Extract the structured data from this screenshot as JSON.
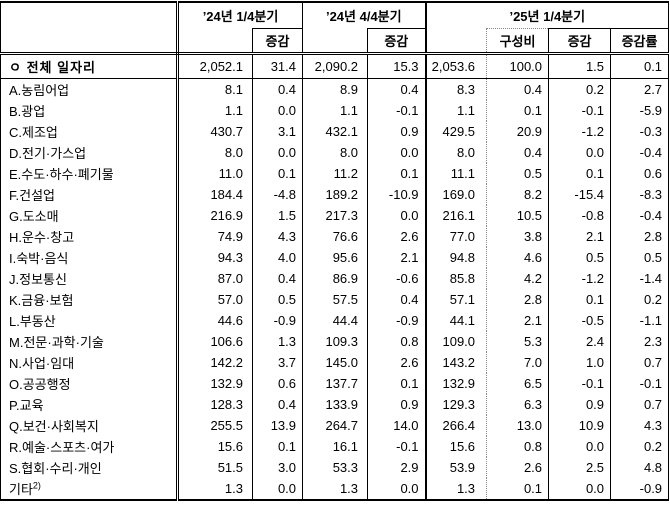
{
  "table": {
    "header": {
      "groups": [
        {
          "label": "’24년 1/4분기",
          "subs": [
            "",
            "증감"
          ]
        },
        {
          "label": "’24년 4/4분기",
          "subs": [
            "",
            "증감"
          ]
        },
        {
          "label": "’25년 1/4분기",
          "subs": [
            "",
            "구성비",
            "증감",
            "증감률"
          ]
        }
      ]
    },
    "total_row": {
      "label": "ㅇ 전체 일자리",
      "values": [
        "2,052.1",
        "31.4",
        "2,090.2",
        "15.3",
        "2,053.6",
        "100.0",
        "1.5",
        "0.1"
      ]
    },
    "rows": [
      {
        "label": "A.농림어업",
        "values": [
          "8.1",
          "0.4",
          "8.9",
          "0.4",
          "8.3",
          "0.4",
          "0.2",
          "2.7"
        ]
      },
      {
        "label": "B.광업",
        "values": [
          "1.1",
          "0.0",
          "1.1",
          "-0.1",
          "1.1",
          "0.1",
          "-0.1",
          "-5.9"
        ]
      },
      {
        "label": "C.제조업",
        "values": [
          "430.7",
          "3.1",
          "432.1",
          "0.9",
          "429.5",
          "20.9",
          "-1.2",
          "-0.3"
        ]
      },
      {
        "label": "D.전기·가스업",
        "values": [
          "8.0",
          "0.0",
          "8.0",
          "0.0",
          "8.0",
          "0.4",
          "0.0",
          "-0.4"
        ]
      },
      {
        "label": "E.수도·하수·폐기물",
        "values": [
          "11.0",
          "0.1",
          "11.2",
          "0.1",
          "11.1",
          "0.5",
          "0.1",
          "0.6"
        ]
      },
      {
        "label": "F.건설업",
        "values": [
          "184.4",
          "-4.8",
          "189.2",
          "-10.9",
          "169.0",
          "8.2",
          "-15.4",
          "-8.3"
        ]
      },
      {
        "label": "G.도소매",
        "values": [
          "216.9",
          "1.5",
          "217.3",
          "0.0",
          "216.1",
          "10.5",
          "-0.8",
          "-0.4"
        ]
      },
      {
        "label": "H.운수·창고",
        "values": [
          "74.9",
          "4.3",
          "76.6",
          "2.6",
          "77.0",
          "3.8",
          "2.1",
          "2.8"
        ]
      },
      {
        "label": "I.숙박·음식",
        "values": [
          "94.3",
          "4.0",
          "95.6",
          "2.1",
          "94.8",
          "4.6",
          "0.5",
          "0.5"
        ]
      },
      {
        "label": "J.정보통신",
        "values": [
          "87.0",
          "0.4",
          "86.9",
          "-0.6",
          "85.8",
          "4.2",
          "-1.2",
          "-1.4"
        ]
      },
      {
        "label": "K.금융·보험",
        "values": [
          "57.0",
          "0.5",
          "57.5",
          "0.4",
          "57.1",
          "2.8",
          "0.1",
          "0.2"
        ]
      },
      {
        "label": "L.부동산",
        "values": [
          "44.6",
          "-0.9",
          "44.4",
          "-0.9",
          "44.1",
          "2.1",
          "-0.5",
          "-1.1"
        ]
      },
      {
        "label": "M.전문·과학·기술",
        "values": [
          "106.6",
          "1.3",
          "109.3",
          "0.8",
          "109.0",
          "5.3",
          "2.4",
          "2.3"
        ]
      },
      {
        "label": "N.사업·임대",
        "values": [
          "142.2",
          "3.7",
          "145.0",
          "2.6",
          "143.2",
          "7.0",
          "1.0",
          "0.7"
        ]
      },
      {
        "label": "O.공공행정",
        "values": [
          "132.9",
          "0.6",
          "137.7",
          "0.1",
          "132.9",
          "6.5",
          "-0.1",
          "-0.1"
        ]
      },
      {
        "label": "P.교육",
        "values": [
          "128.3",
          "0.4",
          "133.9",
          "0.9",
          "129.3",
          "6.3",
          "0.9",
          "0.7"
        ]
      },
      {
        "label": "Q.보건·사회복지",
        "values": [
          "255.5",
          "13.9",
          "264.7",
          "14.0",
          "266.4",
          "13.0",
          "10.9",
          "4.3"
        ]
      },
      {
        "label": "R.예술·스포츠·여가",
        "values": [
          "15.6",
          "0.1",
          "16.1",
          "-0.1",
          "15.6",
          "0.8",
          "0.0",
          "0.2"
        ]
      },
      {
        "label": "S.협회·수리·개인",
        "values": [
          "51.5",
          "3.0",
          "53.3",
          "2.9",
          "53.9",
          "2.6",
          "2.5",
          "4.8"
        ]
      },
      {
        "label": "기타",
        "label_sup": "2)",
        "values": [
          "1.3",
          "0.0",
          "1.3",
          "0.0",
          "1.3",
          "0.1",
          "0.0",
          "-0.9"
        ]
      }
    ]
  },
  "colors": {
    "border": "#000000",
    "dotted_divider": "#8a8a8a",
    "background": "#ffffff",
    "text": "#000000"
  }
}
